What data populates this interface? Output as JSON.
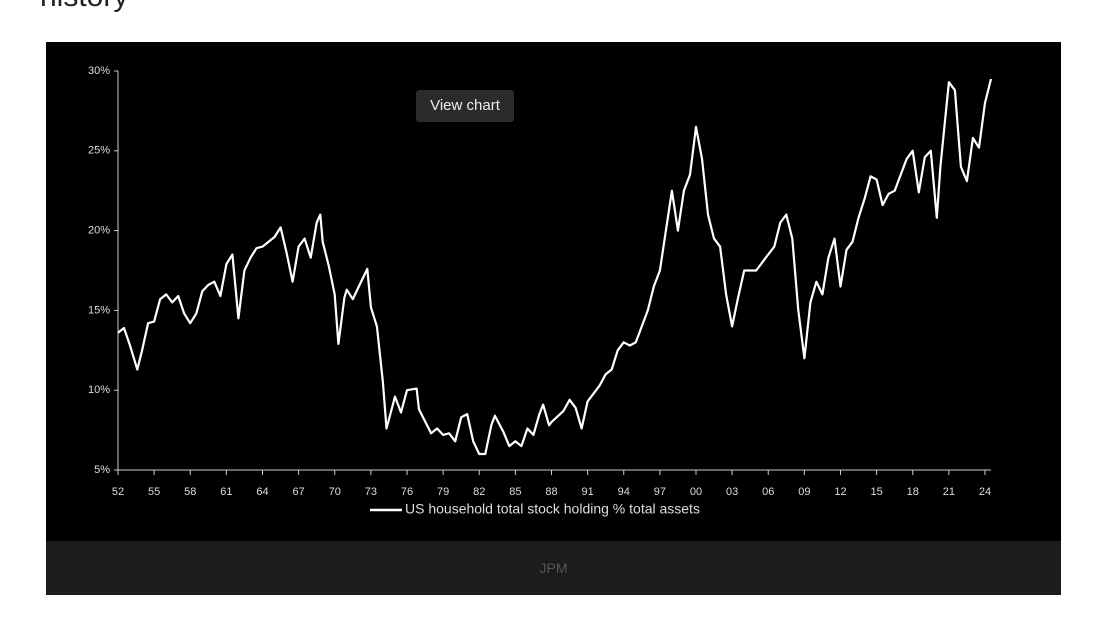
{
  "heading_fragment": "history",
  "button": "View chart",
  "caption": "JPM",
  "chart_data": {
    "type": "line",
    "legend_position": "bottom",
    "xlim": [
      1952,
      2024.5
    ],
    "ylim": [
      5,
      30
    ],
    "yticks": [
      {
        "value": 5,
        "label": "5%"
      },
      {
        "value": 10,
        "label": "10%"
      },
      {
        "value": 15,
        "label": "15%"
      },
      {
        "value": 20,
        "label": "20%"
      },
      {
        "value": 25,
        "label": "25%"
      },
      {
        "value": 30,
        "label": "30%"
      }
    ],
    "xticks": [
      {
        "value": 1952,
        "label": "52"
      },
      {
        "value": 1955,
        "label": "55"
      },
      {
        "value": 1958,
        "label": "58"
      },
      {
        "value": 1961,
        "label": "61"
      },
      {
        "value": 1964,
        "label": "64"
      },
      {
        "value": 1967,
        "label": "67"
      },
      {
        "value": 1970,
        "label": "70"
      },
      {
        "value": 1973,
        "label": "73"
      },
      {
        "value": 1976,
        "label": "76"
      },
      {
        "value": 1979,
        "label": "79"
      },
      {
        "value": 1982,
        "label": "82"
      },
      {
        "value": 1985,
        "label": "85"
      },
      {
        "value": 1988,
        "label": "88"
      },
      {
        "value": 1991,
        "label": "91"
      },
      {
        "value": 1994,
        "label": "94"
      },
      {
        "value": 1997,
        "label": "97"
      },
      {
        "value": 2000,
        "label": "00"
      },
      {
        "value": 2003,
        "label": "03"
      },
      {
        "value": 2006,
        "label": "06"
      },
      {
        "value": 2009,
        "label": "09"
      },
      {
        "value": 2012,
        "label": "12"
      },
      {
        "value": 2015,
        "label": "15"
      },
      {
        "value": 2018,
        "label": "18"
      },
      {
        "value": 2021,
        "label": "21"
      },
      {
        "value": 2024,
        "label": "24"
      }
    ],
    "x": [
      1952,
      1952.5,
      1953,
      1953.6,
      1954,
      1954.5,
      1955,
      1955.5,
      1956,
      1956.5,
      1957,
      1957.5,
      1958,
      1958.5,
      1959,
      1959.5,
      1960,
      1960.5,
      1961,
      1961.5,
      1962,
      1962.5,
      1963,
      1963.5,
      1964,
      1965,
      1965.5,
      1966,
      1966.5,
      1967,
      1967.5,
      1968,
      1968.5,
      1968.8,
      1969,
      1969.5,
      1970,
      1970.3,
      1970.8,
      1971,
      1971.5,
      1972,
      1972.7,
      1973,
      1973.5,
      1974,
      1974.3,
      1975,
      1975.5,
      1976,
      1976.8,
      1977,
      1978,
      1978.5,
      1979,
      1979.5,
      1980,
      1980.5,
      1981,
      1981.5,
      1982,
      1982.5,
      1983,
      1983.3,
      1984,
      1984.5,
      1985,
      1985.5,
      1986,
      1986.5,
      1987,
      1987.3,
      1987.8,
      1988,
      1989,
      1989.5,
      1990,
      1990.5,
      1991,
      1992,
      1992.5,
      1993,
      1993.5,
      1994,
      1994.5,
      1995,
      1996,
      1996.5,
      1997,
      1997.5,
      1998,
      1998.5,
      1999,
      1999.5,
      2000,
      2000.5,
      2001,
      2001.5,
      2002,
      2002.5,
      2003,
      2003.5,
      2004,
      2005,
      2006,
      2006.5,
      2007,
      2007.5,
      2008,
      2008.5,
      2009,
      2009.5,
      2010,
      2010.5,
      2011,
      2011.5,
      2012,
      2012.5,
      2013,
      2013.5,
      2014,
      2014.5,
      2015,
      2015.5,
      2016,
      2016.5,
      2017,
      2017.5,
      2018,
      2018.5,
      2019,
      2019.5,
      2020,
      2020.3,
      2020.7,
      2021,
      2021.5,
      2022,
      2022.5,
      2023,
      2023.5,
      2024,
      2024.5
    ],
    "series": [
      {
        "name": "US household total stock holding % total assets",
        "color": "#ffffff",
        "values": [
          13.6,
          13.9,
          12.8,
          11.3,
          12.5,
          14.2,
          14.3,
          15.7,
          16.0,
          15.5,
          15.9,
          14.8,
          14.2,
          14.8,
          16.2,
          16.6,
          16.8,
          15.9,
          17.9,
          18.5,
          14.5,
          17.5,
          18.3,
          18.9,
          19.0,
          19.6,
          20.2,
          18.6,
          16.8,
          19.0,
          19.5,
          18.3,
          20.5,
          21.0,
          19.3,
          17.8,
          16.0,
          12.9,
          15.8,
          16.3,
          15.7,
          16.5,
          17.6,
          15.2,
          14.0,
          10.5,
          7.6,
          9.6,
          8.6,
          10.0,
          10.1,
          8.8,
          7.3,
          7.6,
          7.2,
          7.3,
          6.8,
          8.3,
          8.5,
          6.8,
          6.0,
          6.0,
          7.8,
          8.4,
          7.4,
          6.5,
          6.8,
          6.5,
          7.6,
          7.2,
          8.5,
          9.1,
          7.8,
          8.0,
          8.7,
          9.4,
          8.9,
          7.6,
          9.3,
          10.3,
          11.0,
          11.3,
          12.5,
          13.0,
          12.8,
          13.0,
          15.0,
          16.5,
          17.5,
          20.0,
          22.5,
          20.0,
          22.5,
          23.5,
          26.5,
          24.5,
          21.0,
          19.5,
          19.0,
          16.0,
          14.0,
          15.8,
          17.5,
          17.5,
          18.5,
          19.0,
          20.5,
          21.0,
          19.5,
          15.0,
          12.0,
          15.5,
          16.8,
          16.0,
          18.3,
          19.5,
          16.5,
          18.8,
          19.3,
          20.8,
          22.0,
          23.4,
          23.2,
          21.6,
          22.3,
          22.5,
          23.5,
          24.5,
          25.0,
          22.4,
          24.6,
          25.0,
          20.8,
          24.0,
          27.0,
          29.3,
          28.8,
          24.0,
          23.1,
          25.8,
          25.2,
          28.0,
          29.5
        ]
      }
    ]
  }
}
